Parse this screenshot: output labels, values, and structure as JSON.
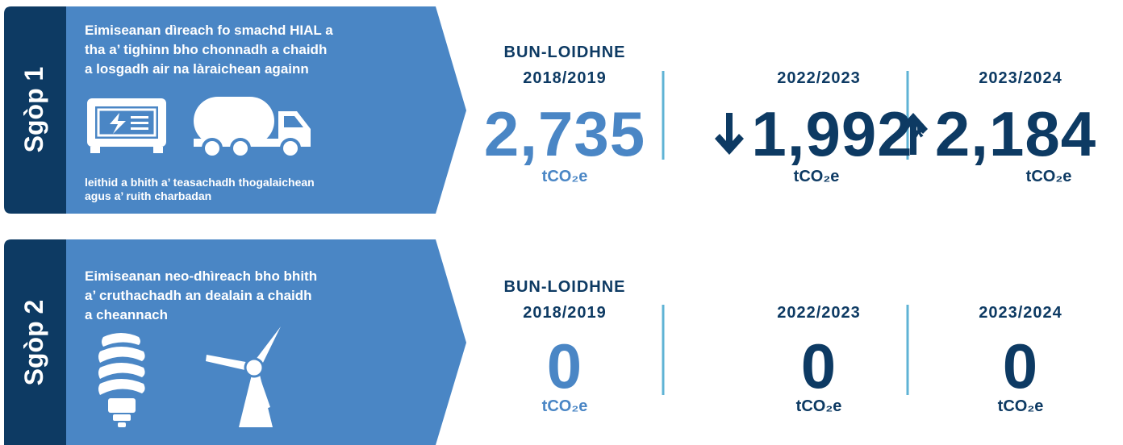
{
  "scopes": [
    {
      "label": "Sgòp 1",
      "description": [
        "Eimiseanan dìreach fo smachd HIAL a",
        "tha a’ tighinn bho chonnadh a chaidh",
        "a losgadh air na làraichean againn"
      ],
      "note": [
        "leithid a bhith a’ teasachadh thogalaichean",
        "agus a’ ruith charbadan"
      ],
      "stats": [
        {
          "heading": [
            "BUN-LOIDHNE",
            "2018/2019"
          ],
          "value": "2,735",
          "unit": "tCO₂e"
        },
        {
          "heading": [
            "2022/2023"
          ],
          "value": "1,992",
          "mark": "*",
          "unit": "tCO₂e"
        },
        {
          "heading": [
            "2023/2024"
          ],
          "value": "2,184",
          "unit": "tCO₂e"
        }
      ]
    },
    {
      "label": "Sgòp 2",
      "description": [
        "Eimiseanan neo-dhìreach bho bhith",
        "a’ cruthachadh an dealain a chaidh",
        "a cheannach"
      ],
      "stats": [
        {
          "heading": [
            "BUN-LOIDHNE",
            "2018/2019"
          ],
          "value": "0",
          "unit": "tCO₂e"
        },
        {
          "heading": [
            "2022/2023"
          ],
          "value": "0",
          "unit": "tCO₂e"
        },
        {
          "heading": [
            "2023/2024"
          ],
          "value": "0",
          "unit": "tCO₂e"
        }
      ]
    }
  ]
}
